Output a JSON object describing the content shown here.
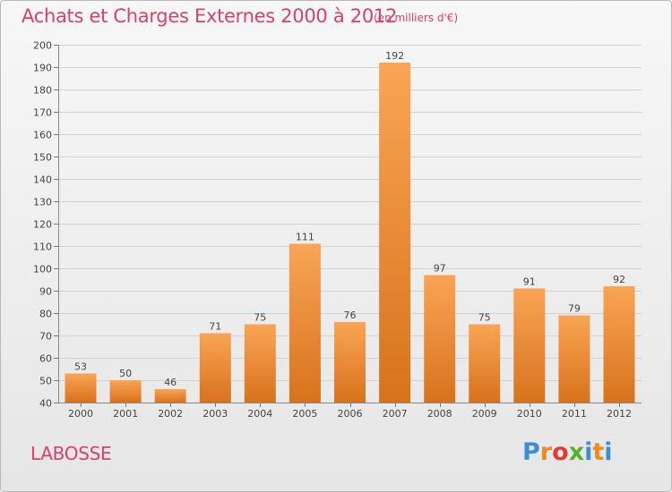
{
  "header": {
    "title": "Achats et Charges Externes 2000 à 2012",
    "subtitle": "(en milliers d'€)"
  },
  "footer": {
    "commune": "LABOSSE",
    "brand_letters": [
      "P",
      "r",
      "o",
      "x",
      "i",
      "t",
      "i"
    ],
    "brand_colors": [
      "#3a8fd6",
      "#f08a1c",
      "#e23a34",
      "#58b22e",
      "#3a8fd6",
      "#f08a1c",
      "#3a8fd6"
    ]
  },
  "colors": {
    "bar_light": "#f9a555",
    "bar_dark": "#d8721c",
    "grid": "#d2d2d2",
    "accent": "#d9416a"
  },
  "chart_data": {
    "type": "bar",
    "categories": [
      "2000",
      "2001",
      "2002",
      "2003",
      "2004",
      "2005",
      "2006",
      "2007",
      "2008",
      "2009",
      "2010",
      "2011",
      "2012"
    ],
    "values": [
      53,
      50,
      46,
      71,
      75,
      111,
      76,
      192,
      97,
      75,
      91,
      79,
      92
    ],
    "title": "Achats et Charges Externes 2000 à 2012",
    "subtitle": "(en milliers d'€)",
    "xlabel": "",
    "ylabel": "",
    "ylim": [
      40,
      200
    ],
    "yticks": [
      40,
      50,
      60,
      70,
      80,
      90,
      100,
      110,
      120,
      130,
      140,
      150,
      160,
      170,
      180,
      190,
      200
    ],
    "grid": true,
    "legend": "none"
  }
}
